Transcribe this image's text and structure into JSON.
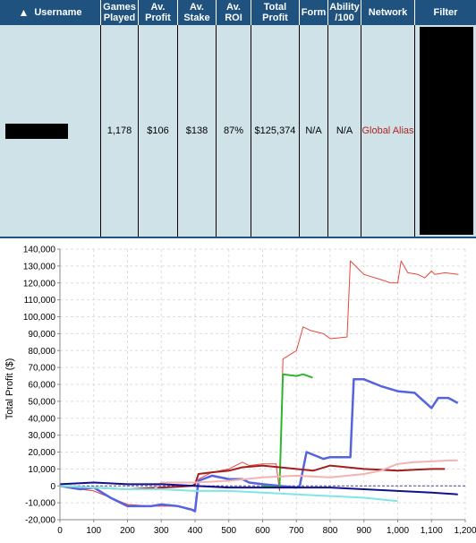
{
  "table": {
    "headers": {
      "username": "Username",
      "games_played": "Games Played",
      "av_profit": "Av. Profit",
      "av_stake": "Av. Stake",
      "av_roi": "Av. ROI",
      "total_profit": "Total Profit",
      "form": "Form",
      "ability": "Ability /100",
      "network": "Network",
      "filter": "Filter"
    },
    "row": {
      "games_played": "1,178",
      "av_profit": "$106",
      "av_stake": "$138",
      "av_roi": "87%",
      "total_profit": "$125,374",
      "form": "N/A",
      "ability": "N/A",
      "network": "Global Alias"
    },
    "colors": {
      "header_bg": "#1f527f",
      "row_bg": "#cfe2e8",
      "network_text": "#b22222"
    }
  },
  "chart_data": {
    "type": "line",
    "ylabel": "Total Profit ($)",
    "xlabel": "",
    "xlim": [
      0,
      1200
    ],
    "ylim": [
      -20000,
      140000
    ],
    "x_ticks": [
      "0",
      "100",
      "200",
      "300",
      "400",
      "500",
      "600",
      "700",
      "800",
      "900",
      "1,000",
      "1,100",
      "1,200"
    ],
    "y_ticks": [
      "-20,000",
      "-10,000",
      "0",
      "10,000",
      "20,000",
      "30,000",
      "40,000",
      "50,000",
      "60,000",
      "70,000",
      "80,000",
      "90,000",
      "100,000",
      "110,000",
      "120,000",
      "130,000",
      "140,000"
    ],
    "grid": true,
    "series": [
      {
        "color": "#e8453c",
        "width": 1,
        "x": [
          0,
          60,
          100,
          150,
          200,
          270,
          300,
          350,
          380,
          400,
          410,
          450,
          500,
          540,
          560,
          600,
          640,
          650,
          660,
          700,
          720,
          740,
          780,
          800,
          850,
          860,
          870,
          900,
          950,
          980,
          1000,
          1010,
          1030,
          1060,
          1080,
          1100,
          1110,
          1140,
          1180
        ],
        "y": [
          0,
          -2000,
          -3000,
          -7000,
          -11000,
          -12000,
          -12000,
          -12000,
          -14000,
          -14000,
          4000,
          8000,
          10000,
          14000,
          12000,
          13000,
          13000,
          -3000,
          75000,
          80000,
          94000,
          92000,
          90000,
          87000,
          88000,
          133000,
          131000,
          125000,
          122000,
          120000,
          120000,
          133000,
          126000,
          125000,
          123000,
          127000,
          125000,
          126000,
          125000
        ]
      },
      {
        "color": "#5563dd",
        "width": 2.5,
        "x": [
          0,
          60,
          100,
          150,
          200,
          270,
          300,
          350,
          390,
          400,
          410,
          450,
          500,
          540,
          560,
          600,
          650,
          700,
          710,
          730,
          780,
          800,
          860,
          870,
          900,
          950,
          1000,
          1050,
          1100,
          1120,
          1150,
          1178
        ],
        "y": [
          0,
          -2000,
          -1000,
          -7000,
          -12000,
          -12000,
          -11000,
          -12000,
          -14000,
          -15000,
          3000,
          6000,
          4000,
          4000,
          2000,
          1000,
          0,
          -1000,
          0,
          20000,
          16000,
          17000,
          17000,
          63000,
          63000,
          59000,
          56000,
          55000,
          46000,
          52000,
          52000,
          49000
        ]
      },
      {
        "color": "#2fb52f",
        "width": 2,
        "x": [
          600,
          650,
          660,
          700,
          720,
          748
        ],
        "y": [
          0,
          -1000,
          66000,
          65000,
          66000,
          64000
        ]
      },
      {
        "color": "#a51e1e",
        "width": 2,
        "x": [
          0,
          100,
          200,
          300,
          350,
          390,
          400,
          410,
          450,
          500,
          540,
          600,
          650,
          700,
          750,
          800,
          850,
          900,
          950,
          1000,
          1050,
          1100,
          1140
        ],
        "y": [
          0,
          -1000,
          -2000,
          -1000,
          -500,
          0,
          1000,
          7000,
          8000,
          9000,
          11000,
          12000,
          11000,
          10000,
          9000,
          12000,
          11000,
          10000,
          9500,
          9000,
          9500,
          10000,
          10000
        ]
      },
      {
        "color": "#f2b3b3",
        "width": 2,
        "x": [
          0,
          100,
          200,
          280,
          300,
          400,
          500,
          600,
          700,
          800,
          900,
          950,
          1000,
          1050,
          1100,
          1150,
          1178
        ],
        "y": [
          0,
          -1000,
          -2000,
          -2000,
          2000,
          2000,
          3000,
          5000,
          6000,
          5000,
          7000,
          9000,
          13000,
          14000,
          14500,
          15000,
          15000
        ]
      },
      {
        "color": "#7fe6e6",
        "width": 2,
        "x": [
          0,
          100,
          200,
          300,
          400,
          500,
          600,
          700,
          800,
          850,
          900,
          950,
          1000
        ],
        "y": [
          0,
          -1000,
          -2000,
          -2000,
          -3000,
          -3000,
          -4000,
          -5000,
          -6000,
          -6500,
          -7000,
          -8000,
          -9000
        ]
      },
      {
        "color": "#11118c",
        "width": 2,
        "x": [
          0,
          100,
          200,
          300,
          400,
          500,
          600,
          700,
          800,
          900,
          1000,
          1100,
          1178
        ],
        "y": [
          1000,
          2000,
          1000,
          1000,
          0,
          -1000,
          -1000,
          -1000,
          -1000,
          -2000,
          -3000,
          -4000,
          -5000
        ]
      }
    ]
  }
}
